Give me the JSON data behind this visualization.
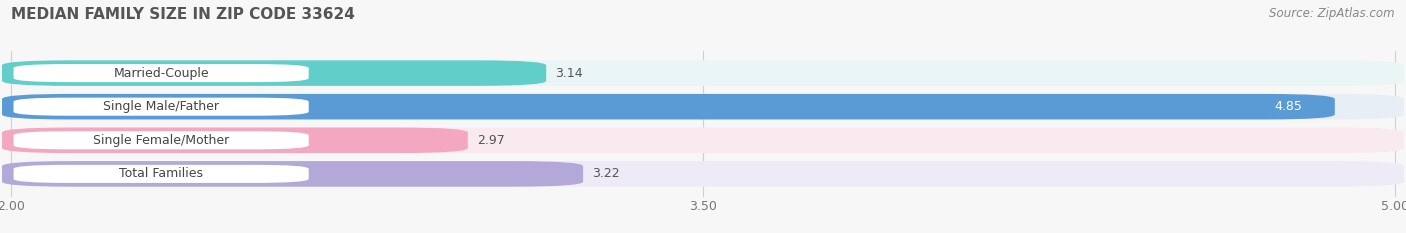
{
  "title": "MEDIAN FAMILY SIZE IN ZIP CODE 33624",
  "source": "Source: ZipAtlas.com",
  "categories": [
    "Married-Couple",
    "Single Male/Father",
    "Single Female/Mother",
    "Total Families"
  ],
  "values": [
    3.14,
    4.85,
    2.97,
    3.22
  ],
  "bar_colors": [
    "#62ceca",
    "#5b9bd5",
    "#f4a7c0",
    "#b3a8d8"
  ],
  "bar_bg_colors": [
    "#eaf5f5",
    "#e8eef6",
    "#f9eaf0",
    "#eeeaf6"
  ],
  "xlim": [
    2.0,
    5.0
  ],
  "xticks": [
    2.0,
    3.5,
    5.0
  ],
  "value_color_white": [
    false,
    true,
    false,
    false
  ],
  "title_fontsize": 11,
  "label_fontsize": 9,
  "tick_fontsize": 9,
  "source_fontsize": 8.5,
  "bar_height": 0.72,
  "background_color": "#f7f7f7",
  "grid_color": "#d0d0d0"
}
